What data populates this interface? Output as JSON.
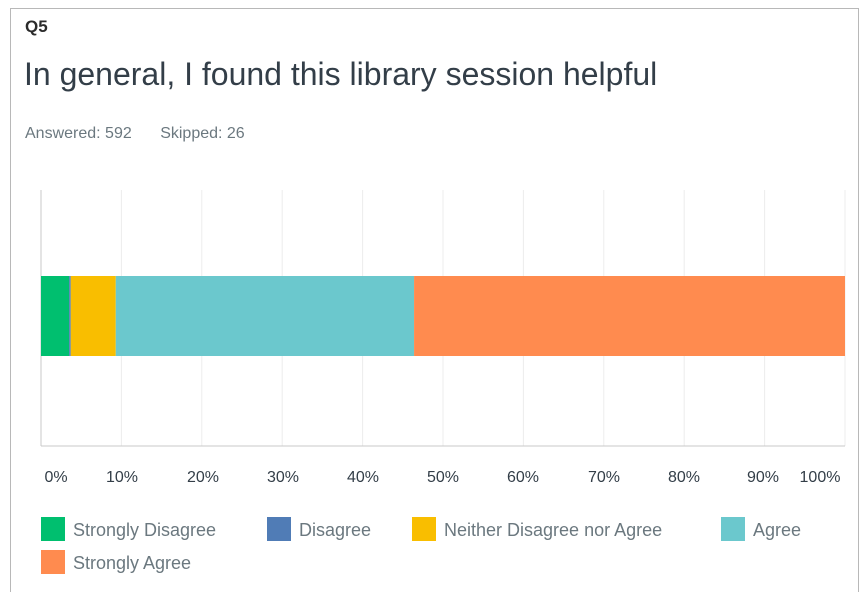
{
  "question": {
    "number": "Q5",
    "title": "In general, I found this library session helpful",
    "answered": "Answered: 592",
    "skipped": "Skipped: 26"
  },
  "chart_data": {
    "type": "bar",
    "orientation": "horizontal",
    "stacked": true,
    "xlim": [
      0,
      100
    ],
    "x_tick_labels": [
      "0%",
      "10%",
      "20%",
      "30%",
      "40%",
      "50%",
      "60%",
      "70%",
      "80%",
      "90%",
      "100%"
    ],
    "grid": true,
    "legend_position": "bottom",
    "series": [
      {
        "name": "Strongly Disagree",
        "value": 3.5,
        "color": "#00bf6f"
      },
      {
        "name": "Disagree",
        "value": 0.2,
        "color": "#507cb6"
      },
      {
        "name": "Neither Disagree nor Agree",
        "value": 5.6,
        "color": "#f9be00"
      },
      {
        "name": "Agree",
        "value": 37.1,
        "color": "#6bc8cd"
      },
      {
        "name": "Strongly Agree",
        "value": 53.6,
        "color": "#ff8b4f"
      }
    ]
  }
}
